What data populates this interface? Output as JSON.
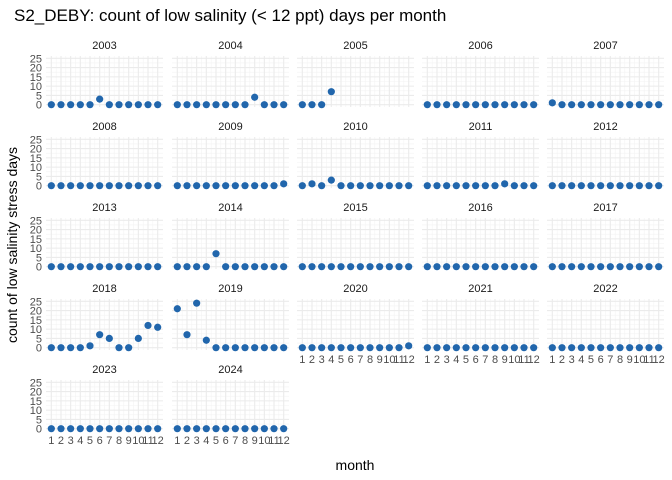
{
  "chart_data": {
    "type": "scatter",
    "title": "S2_DEBY: count of low salinity (< 12 ppt) days per month",
    "xlabel": "month",
    "ylabel": "count of low salinity stress days",
    "x_ticks": [
      "1",
      "2",
      "3",
      "4",
      "5",
      "6",
      "7",
      "8",
      "9",
      "10",
      "11",
      "12"
    ],
    "y_ticks": [
      "0",
      "5",
      "10",
      "15",
      "20",
      "25"
    ],
    "ylim": [
      0,
      25
    ],
    "xlim": [
      1,
      12
    ],
    "point_color": "#2166ac",
    "grid": true,
    "facets": [
      {
        "label": "2003",
        "values": [
          0,
          0,
          0,
          0,
          0,
          3,
          0,
          0,
          0,
          0,
          0,
          0
        ]
      },
      {
        "label": "2004",
        "values": [
          0,
          0,
          0,
          0,
          0,
          0,
          0,
          0,
          4,
          0,
          0,
          0
        ]
      },
      {
        "label": "2005",
        "values": [
          0,
          0,
          0,
          7
        ]
      },
      {
        "label": "2006",
        "values": [
          0,
          0,
          0,
          0,
          0,
          0,
          0,
          0,
          0,
          0,
          0,
          0
        ]
      },
      {
        "label": "2007",
        "values": [
          1,
          0,
          0,
          0,
          0,
          0,
          0,
          0,
          0,
          0,
          0,
          0
        ]
      },
      {
        "label": "2008",
        "values": [
          0,
          0,
          0,
          0,
          0,
          0,
          0,
          0,
          0,
          0,
          0,
          0
        ]
      },
      {
        "label": "2009",
        "values": [
          0,
          0,
          0,
          0,
          0,
          0,
          0,
          0,
          0,
          0,
          0,
          1
        ]
      },
      {
        "label": "2010",
        "values": [
          0,
          1,
          0,
          3,
          0,
          0,
          0,
          0,
          0,
          0,
          0,
          0
        ]
      },
      {
        "label": "2011",
        "values": [
          0,
          0,
          0,
          0,
          0,
          0,
          0,
          0,
          1,
          0,
          0,
          0
        ]
      },
      {
        "label": "2012",
        "values": [
          0,
          0,
          0,
          0,
          0,
          0,
          0,
          0,
          0,
          0,
          0,
          0
        ]
      },
      {
        "label": "2013",
        "values": [
          0,
          0,
          0,
          0,
          0,
          0,
          0,
          0,
          0,
          0,
          0,
          0
        ]
      },
      {
        "label": "2014",
        "values": [
          0,
          0,
          0,
          0,
          7,
          0,
          0,
          0,
          0,
          0,
          0,
          0
        ]
      },
      {
        "label": "2015",
        "values": [
          0,
          0,
          0,
          0,
          0,
          0,
          0,
          0,
          0,
          0,
          0,
          0
        ]
      },
      {
        "label": "2016",
        "values": [
          0,
          0,
          0,
          0,
          0,
          0,
          0,
          0,
          0,
          0,
          0,
          0
        ]
      },
      {
        "label": "2017",
        "values": [
          0,
          0,
          0,
          0,
          0,
          0,
          0,
          0,
          0,
          0,
          0,
          0
        ]
      },
      {
        "label": "2018",
        "values": [
          0,
          0,
          0,
          0,
          1,
          7,
          5,
          0,
          0,
          5,
          12,
          11
        ]
      },
      {
        "label": "2019",
        "values": [
          21,
          7,
          24,
          4,
          0,
          0,
          0,
          0,
          0,
          0,
          0,
          0
        ]
      },
      {
        "label": "2020",
        "values": [
          0,
          0,
          0,
          0,
          0,
          0,
          0,
          0,
          0,
          0,
          0,
          1
        ]
      },
      {
        "label": "2021",
        "values": [
          0,
          0,
          0,
          0,
          0,
          0,
          0,
          0,
          0,
          0,
          0,
          0
        ]
      },
      {
        "label": "2022",
        "values": [
          0,
          0,
          0,
          0,
          0,
          0,
          0,
          0,
          0,
          0,
          0,
          0
        ]
      },
      {
        "label": "2023",
        "values": [
          0,
          0,
          0,
          0,
          0,
          0,
          0,
          0,
          0,
          0,
          0,
          0
        ]
      },
      {
        "label": "2024",
        "values": [
          0,
          0,
          0,
          0,
          0,
          0,
          0,
          0,
          0,
          0,
          0,
          0
        ]
      }
    ]
  }
}
